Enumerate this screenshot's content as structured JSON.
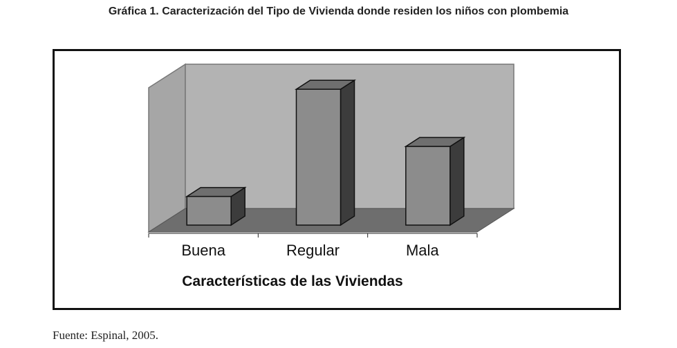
{
  "chart_data": {
    "type": "bar",
    "title": "Gráfica 1. Caracterización del Tipo de Vivienda donde residen los niños con plombemia",
    "xlabel": "Características  de las Viviendas",
    "ylabel": "",
    "categories": [
      "Buena",
      "Regular",
      "Mala"
    ],
    "values": [
      8,
      38,
      22
    ],
    "ylim": [
      0,
      45
    ],
    "grid": false,
    "legend": "none",
    "colors": {
      "bar_front": "#8c8c8c",
      "bar_top": "#6f6f6f",
      "bar_side": "#3c3c3c",
      "back_wall": "#b3b3b3",
      "side_wall": "#a6a6a6",
      "floor": "#6e6e6e"
    }
  },
  "source": "Fuente: Espinal, 2005."
}
